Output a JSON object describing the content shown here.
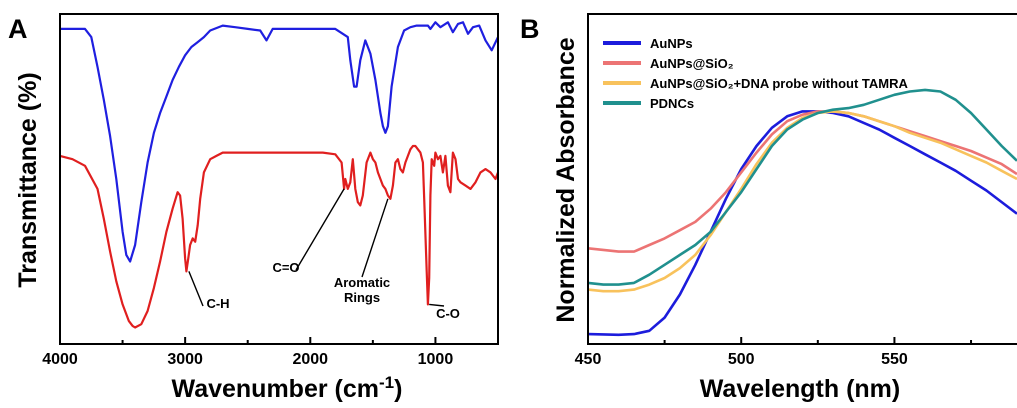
{
  "chart_data": [
    {
      "panel_label": "A",
      "type": "line",
      "xlabel": "Wavenumber (cm",
      "xlabel_sup": "-1",
      "ylabel": "Transmittance (%)",
      "xlim": [
        4000,
        500
      ],
      "ylim": [
        0,
        1
      ],
      "x_ticks": [
        "4000",
        "3000",
        "2000",
        "1000"
      ],
      "x_tick_values": [
        4000,
        3000,
        2000,
        1000
      ],
      "colors": [
        "#1f1fe0",
        "#e01f1f"
      ],
      "series": [
        {
          "color": "#1f1fe0",
          "x": [
            4000,
            3900,
            3800,
            3750,
            3700,
            3650,
            3600,
            3550,
            3500,
            3470,
            3440,
            3400,
            3350,
            3300,
            3250,
            3200,
            3150,
            3100,
            3050,
            3000,
            2950,
            2900,
            2850,
            2800,
            2700,
            2600,
            2500,
            2400,
            2350,
            2300,
            2200,
            2100,
            2000,
            1900,
            1800,
            1700,
            1680,
            1650,
            1630,
            1600,
            1560,
            1520,
            1480,
            1440,
            1420,
            1400,
            1380,
            1350,
            1300,
            1250,
            1200,
            1150,
            1100,
            1060,
            1040,
            1000,
            960,
            900,
            860,
            820,
            780,
            740,
            700,
            650,
            600,
            550,
            500
          ],
          "y": [
            0.955,
            0.955,
            0.955,
            0.93,
            0.84,
            0.74,
            0.63,
            0.5,
            0.34,
            0.27,
            0.25,
            0.3,
            0.43,
            0.55,
            0.64,
            0.7,
            0.75,
            0.8,
            0.84,
            0.875,
            0.9,
            0.915,
            0.93,
            0.95,
            0.965,
            0.96,
            0.955,
            0.95,
            0.92,
            0.955,
            0.955,
            0.955,
            0.955,
            0.955,
            0.955,
            0.93,
            0.86,
            0.78,
            0.78,
            0.86,
            0.92,
            0.88,
            0.8,
            0.7,
            0.66,
            0.64,
            0.66,
            0.78,
            0.9,
            0.95,
            0.96,
            0.965,
            0.965,
            0.965,
            0.955,
            0.975,
            0.96,
            0.975,
            0.945,
            0.97,
            0.975,
            0.94,
            0.96,
            0.965,
            0.92,
            0.89,
            0.93
          ]
        },
        {
          "color": "#e01f1f",
          "x": [
            4000,
            3900,
            3800,
            3700,
            3650,
            3600,
            3550,
            3500,
            3450,
            3420,
            3400,
            3350,
            3300,
            3250,
            3200,
            3150,
            3100,
            3060,
            3040,
            3020,
            3000,
            2990,
            2975,
            2960,
            2940,
            2920,
            2900,
            2880,
            2850,
            2800,
            2750,
            2700,
            2600,
            2500,
            2400,
            2300,
            2200,
            2100,
            2000,
            1900,
            1800,
            1750,
            1730,
            1720,
            1700,
            1680,
            1660,
            1640,
            1620,
            1600,
            1580,
            1550,
            1520,
            1500,
            1480,
            1460,
            1440,
            1420,
            1400,
            1380,
            1360,
            1340,
            1320,
            1300,
            1280,
            1260,
            1240,
            1220,
            1200,
            1180,
            1160,
            1140,
            1120,
            1100,
            1090,
            1070,
            1060,
            1050,
            1040,
            1030,
            1010,
            1000,
            980,
            960,
            940,
            920,
            900,
            880,
            860,
            840,
            820,
            800,
            760,
            720,
            680,
            640,
            600,
            560,
            520,
            500
          ],
          "y": [
            0.57,
            0.56,
            0.54,
            0.47,
            0.38,
            0.28,
            0.19,
            0.12,
            0.07,
            0.055,
            0.05,
            0.06,
            0.1,
            0.17,
            0.25,
            0.34,
            0.41,
            0.46,
            0.45,
            0.38,
            0.26,
            0.22,
            0.26,
            0.3,
            0.32,
            0.31,
            0.36,
            0.44,
            0.52,
            0.56,
            0.57,
            0.58,
            0.58,
            0.58,
            0.58,
            0.58,
            0.58,
            0.58,
            0.58,
            0.58,
            0.575,
            0.55,
            0.47,
            0.5,
            0.47,
            0.49,
            0.56,
            0.47,
            0.43,
            0.42,
            0.45,
            0.55,
            0.58,
            0.56,
            0.55,
            0.52,
            0.5,
            0.48,
            0.47,
            0.45,
            0.44,
            0.48,
            0.55,
            0.56,
            0.53,
            0.52,
            0.55,
            0.57,
            0.59,
            0.6,
            0.6,
            0.59,
            0.58,
            0.55,
            0.44,
            0.22,
            0.12,
            0.2,
            0.45,
            0.56,
            0.54,
            0.58,
            0.56,
            0.57,
            0.52,
            0.57,
            0.48,
            0.46,
            0.58,
            0.56,
            0.5,
            0.49,
            0.48,
            0.47,
            0.49,
            0.52,
            0.53,
            0.52,
            0.5,
            0.52
          ]
        }
      ],
      "annotations": [
        {
          "text": "C-H",
          "x": 2970,
          "y": 0.22
        },
        {
          "text": "C=O",
          "x": 1730,
          "y": 0.47
        },
        {
          "text": "Aromatic",
          "x": 1380,
          "y": 0.44
        },
        {
          "text": "Rings",
          "x": 1380,
          "y": 0.44
        },
        {
          "text": "C-O",
          "x": 1050,
          "y": 0.12
        }
      ]
    },
    {
      "panel_label": "B",
      "type": "line",
      "xlabel": "Wavelength (nm)",
      "ylabel": "Normalized Absorbance",
      "xlim": [
        450,
        590
      ],
      "ylim": [
        0,
        1
      ],
      "x_ticks": [
        "450",
        "500",
        "550"
      ],
      "x_tick_values": [
        450,
        500,
        550
      ],
      "legend_position": "top-left",
      "series": [
        {
          "name": "AuNPs",
          "color": "#1c1cdc",
          "x": [
            450,
            460,
            465,
            470,
            475,
            480,
            485,
            490,
            495,
            500,
            505,
            510,
            515,
            520,
            525,
            530,
            535,
            540,
            545,
            550,
            555,
            560,
            565,
            570,
            575,
            580,
            585,
            590
          ],
          "y": [
            0.03,
            0.028,
            0.03,
            0.04,
            0.08,
            0.15,
            0.24,
            0.34,
            0.44,
            0.53,
            0.6,
            0.655,
            0.69,
            0.705,
            0.705,
            0.7,
            0.69,
            0.67,
            0.65,
            0.625,
            0.6,
            0.575,
            0.55,
            0.525,
            0.495,
            0.465,
            0.43,
            0.395
          ]
        },
        {
          "name": "AuNPs@SiO₂",
          "color": "#ec7474",
          "x": [
            450,
            455,
            460,
            465,
            470,
            475,
            480,
            485,
            490,
            495,
            500,
            505,
            510,
            515,
            520,
            525,
            530,
            535,
            540,
            545,
            550,
            555,
            560,
            565,
            570,
            575,
            580,
            585,
            590
          ],
          "y": [
            0.29,
            0.285,
            0.28,
            0.28,
            0.3,
            0.32,
            0.345,
            0.37,
            0.41,
            0.46,
            0.52,
            0.58,
            0.635,
            0.675,
            0.695,
            0.705,
            0.705,
            0.7,
            0.69,
            0.675,
            0.66,
            0.645,
            0.63,
            0.615,
            0.6,
            0.585,
            0.565,
            0.545,
            0.515
          ]
        },
        {
          "name": "AuNPs@SiO₂+DNA probe without TAMRA",
          "color": "#f8c25c",
          "x": [
            450,
            455,
            460,
            465,
            470,
            475,
            480,
            485,
            490,
            495,
            500,
            505,
            510,
            515,
            520,
            525,
            530,
            535,
            540,
            545,
            550,
            555,
            560,
            565,
            570,
            575,
            580,
            585,
            590
          ],
          "y": [
            0.165,
            0.16,
            0.16,
            0.165,
            0.18,
            0.2,
            0.23,
            0.27,
            0.33,
            0.4,
            0.47,
            0.545,
            0.61,
            0.655,
            0.685,
            0.7,
            0.705,
            0.7,
            0.69,
            0.675,
            0.66,
            0.64,
            0.625,
            0.61,
            0.59,
            0.57,
            0.55,
            0.525,
            0.5
          ]
        },
        {
          "name": "PDNCs",
          "color": "#20908e",
          "x": [
            450,
            455,
            460,
            465,
            470,
            475,
            480,
            485,
            490,
            495,
            500,
            505,
            510,
            515,
            520,
            525,
            530,
            535,
            540,
            545,
            550,
            555,
            560,
            565,
            570,
            575,
            580,
            585,
            590
          ],
          "y": [
            0.185,
            0.18,
            0.18,
            0.185,
            0.21,
            0.24,
            0.27,
            0.3,
            0.34,
            0.4,
            0.46,
            0.53,
            0.6,
            0.65,
            0.68,
            0.7,
            0.71,
            0.715,
            0.725,
            0.74,
            0.755,
            0.765,
            0.77,
            0.765,
            0.74,
            0.7,
            0.65,
            0.6,
            0.555
          ]
        }
      ]
    }
  ]
}
